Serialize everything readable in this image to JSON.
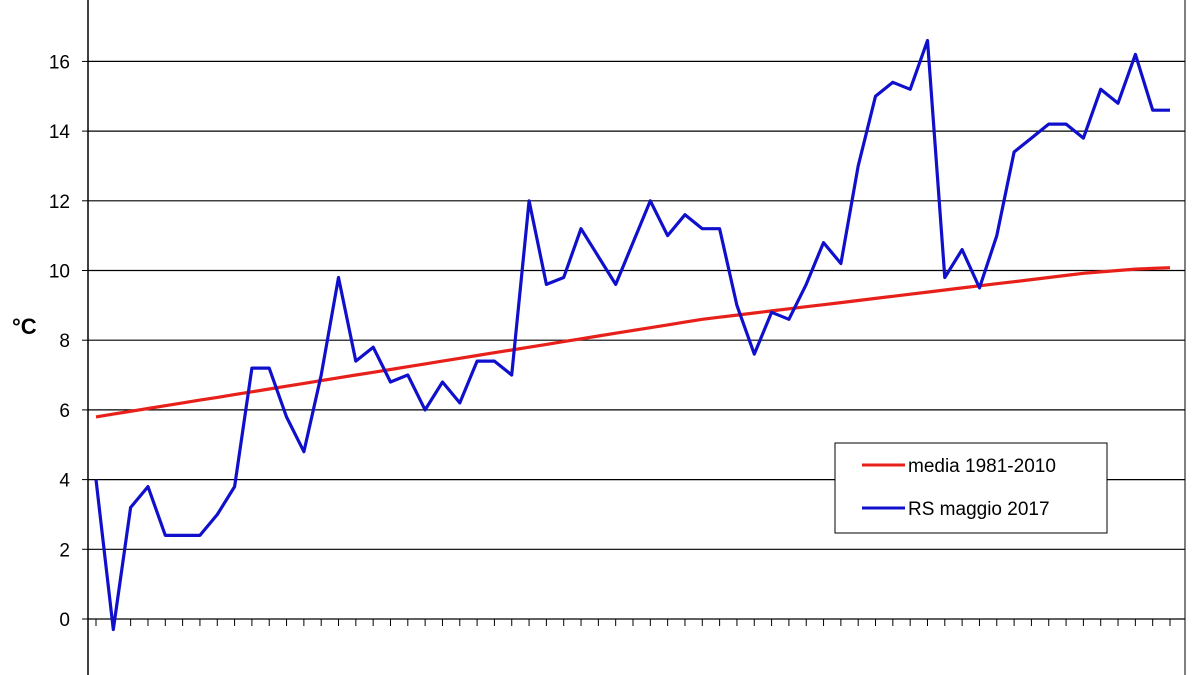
{
  "chart_data": {
    "type": "line",
    "title": "",
    "xlabel": "",
    "ylabel": "°C",
    "ylim": [
      -2,
      18
    ],
    "yticks": [
      0,
      2,
      4,
      6,
      8,
      10,
      12,
      14,
      16
    ],
    "grid": true,
    "legend_position": "right-bottom",
    "x": [
      1,
      2,
      3,
      4,
      5,
      6,
      7,
      8,
      9,
      10,
      11,
      12,
      13,
      14,
      15,
      16,
      17,
      18,
      19,
      20,
      21,
      22,
      23,
      24,
      25,
      26,
      27,
      28,
      29,
      30,
      31,
      32,
      33,
      34,
      35,
      36,
      37,
      38,
      39,
      40,
      41,
      42,
      43,
      44,
      45,
      46,
      47,
      48,
      49,
      50,
      51,
      52,
      53,
      54,
      55,
      56,
      57,
      58,
      59,
      60,
      61,
      62,
      63
    ],
    "series": [
      {
        "name": "media 1981-2010",
        "color": "#e8201a",
        "values": [
          5.8,
          5.88,
          5.96,
          6.04,
          6.12,
          6.2,
          6.28,
          6.36,
          6.44,
          6.52,
          6.6,
          6.68,
          6.76,
          6.84,
          6.92,
          7.0,
          7.08,
          7.16,
          7.24,
          7.32,
          7.4,
          7.48,
          7.56,
          7.64,
          7.72,
          7.8,
          7.88,
          7.96,
          8.04,
          8.12,
          8.2,
          8.28,
          8.36,
          8.44,
          8.52,
          8.6,
          8.66,
          8.72,
          8.78,
          8.84,
          8.9,
          8.96,
          9.02,
          9.08,
          9.14,
          9.2,
          9.26,
          9.32,
          9.38,
          9.44,
          9.5,
          9.56,
          9.62,
          9.68,
          9.74,
          9.8,
          9.86,
          9.92,
          9.96,
          10.0,
          10.04,
          10.06,
          10.08
        ]
      },
      {
        "name": "RS maggio 2017",
        "color": "#1010cc",
        "values": [
          4.0,
          -0.3,
          3.2,
          3.8,
          2.4,
          2.4,
          2.4,
          3.0,
          3.8,
          7.2,
          7.2,
          5.8,
          4.8,
          7.0,
          9.8,
          7.4,
          7.8,
          6.8,
          7.0,
          6.0,
          6.8,
          6.2,
          7.4,
          7.4,
          7.0,
          12.0,
          9.6,
          9.8,
          11.2,
          10.4,
          9.6,
          10.8,
          12.0,
          11.0,
          11.6,
          11.2,
          11.2,
          9.0,
          7.6,
          8.8,
          8.6,
          9.6,
          10.8,
          10.2,
          13.0,
          15.0,
          15.4,
          15.2,
          16.6,
          9.8,
          10.6,
          9.5,
          11.0,
          13.4,
          13.8,
          14.2,
          14.2,
          13.8,
          15.2,
          14.8,
          16.2,
          14.6,
          14.6
        ]
      }
    ]
  }
}
